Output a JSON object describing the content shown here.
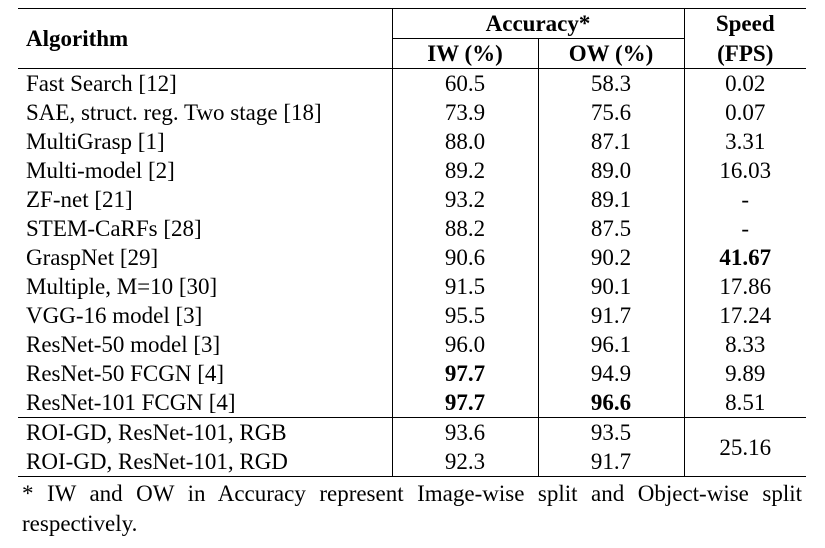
{
  "header": {
    "algorithm": "Algorithm",
    "accuracy": "Accuracy*",
    "iw": "IW (%)",
    "ow": "OW (%)",
    "speed_line1": "Speed",
    "speed_line2": "(FPS)"
  },
  "rows": [
    {
      "name": "Fast Search [12]",
      "iw": "60.5",
      "ow": "58.3",
      "fps": "0.02"
    },
    {
      "name": "SAE, struct. reg. Two stage [18]",
      "iw": "73.9",
      "ow": "75.6",
      "fps": "0.07"
    },
    {
      "name": "MultiGrasp [1]",
      "iw": "88.0",
      "ow": "87.1",
      "fps": "3.31"
    },
    {
      "name": "Multi-model [2]",
      "iw": "89.2",
      "ow": "89.0",
      "fps": "16.03"
    },
    {
      "name": "ZF-net [21]",
      "iw": "93.2",
      "ow": "89.1",
      "fps": "-"
    },
    {
      "name": "STEM-CaRFs [28]",
      "iw": "88.2",
      "ow": "87.5",
      "fps": "-"
    },
    {
      "name": "GraspNet [29]",
      "iw": "90.6",
      "ow": "90.2",
      "fps": "41.67"
    },
    {
      "name": "Multiple, M=10 [30]",
      "iw": "91.5",
      "ow": "90.1",
      "fps": "17.86"
    },
    {
      "name": "VGG-16 model [3]",
      "iw": "95.5",
      "ow": "91.7",
      "fps": "17.24"
    },
    {
      "name": "ResNet-50 model [3]",
      "iw": "96.0",
      "ow": "96.1",
      "fps": "8.33"
    },
    {
      "name": "ResNet-50 FCGN [4]",
      "iw": "97.7",
      "ow": "94.9",
      "fps": "9.89"
    },
    {
      "name": "ResNet-101 FCGN [4]",
      "iw": "97.7",
      "ow": "96.6",
      "fps": "8.51"
    }
  ],
  "roi_rows": [
    {
      "name": "ROI-GD, ResNet-101, RGB",
      "iw": "93.6",
      "ow": "93.5"
    },
    {
      "name": "ROI-GD, ResNet-101, RGD",
      "iw": "92.3",
      "ow": "91.7"
    }
  ],
  "roi_fps": "25.16",
  "footnote": "* IW and OW in Accuracy represent Image-wise split and Object-wise split respectively."
}
